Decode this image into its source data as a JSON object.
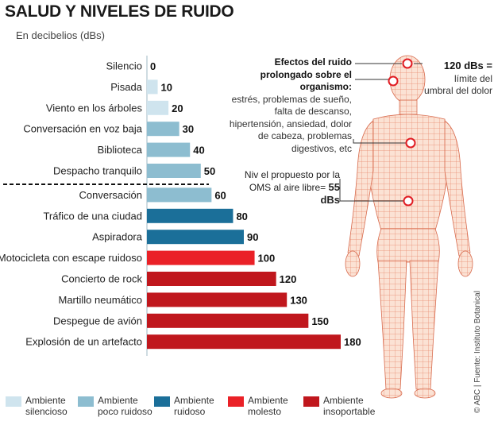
{
  "title": "SALUD Y NIVELES DE RUIDO",
  "subtitle": "En decibelios (dBs)",
  "colors": {
    "silencioso": "#cfe4ee",
    "poco_ruidoso": "#8dbdd0",
    "ruidoso": "#1b6f99",
    "molesto": "#ea2127",
    "insoportable": "#c0171d"
  },
  "chart_data": {
    "type": "bar",
    "orientation": "horizontal",
    "categories": [
      "Silencio",
      "Pisada",
      "Viento en los árboles",
      "Conversación en voz baja",
      "Biblioteca",
      "Despacho tranquilo",
      "Conversación",
      "Tráfico de una ciudad",
      "Aspiradora",
      "Motocicleta con escape ruidoso",
      "Concierto de rock",
      "Martillo neumático",
      "Despegue de avión",
      "Explosión de un artefacto"
    ],
    "values": [
      0,
      10,
      20,
      30,
      40,
      50,
      60,
      80,
      90,
      100,
      120,
      130,
      150,
      180
    ],
    "value_labels": [
      "0",
      "10",
      "20",
      "30",
      "40",
      "50",
      "60",
      "80",
      "90",
      "100",
      "120",
      "130",
      "150",
      "180"
    ],
    "classes": [
      "silencioso",
      "silencioso",
      "silencioso",
      "poco_ruidoso",
      "poco_ruidoso",
      "poco_ruidoso",
      "poco_ruidoso",
      "ruidoso",
      "ruidoso",
      "molesto",
      "insoportable",
      "insoportable",
      "insoportable",
      "insoportable"
    ],
    "threshold_after_index": 5,
    "xlim": [
      0,
      180
    ]
  },
  "legend": [
    {
      "key": "silencioso",
      "line1": "Ambiente",
      "line2": "silencioso"
    },
    {
      "key": "poco_ruidoso",
      "line1": "Ambiente",
      "line2": "poco ruidoso"
    },
    {
      "key": "ruidoso",
      "line1": "Ambiente",
      "line2": "ruidoso"
    },
    {
      "key": "molesto",
      "line1": "Ambiente",
      "line2": "molesto"
    },
    {
      "key": "insoportable",
      "line1": "Ambiente",
      "line2": "insoportable"
    }
  ],
  "effects": {
    "title": "Efectos del ruido prolongado sobre el organismo:",
    "body": "estrés, problemas de sueño, falta de descanso, hipertensión, ansiedad, dolor de cabeza, problemas digestivos, etc"
  },
  "oms": {
    "text": "Niv el propuesto por la OMS al aire libre=",
    "strong": "55 dBs"
  },
  "pain": {
    "strong": "120 dBs =",
    "text": "límite del umbral del dolor"
  },
  "credit": "© ABC | Fuente: Instituto Botanical"
}
